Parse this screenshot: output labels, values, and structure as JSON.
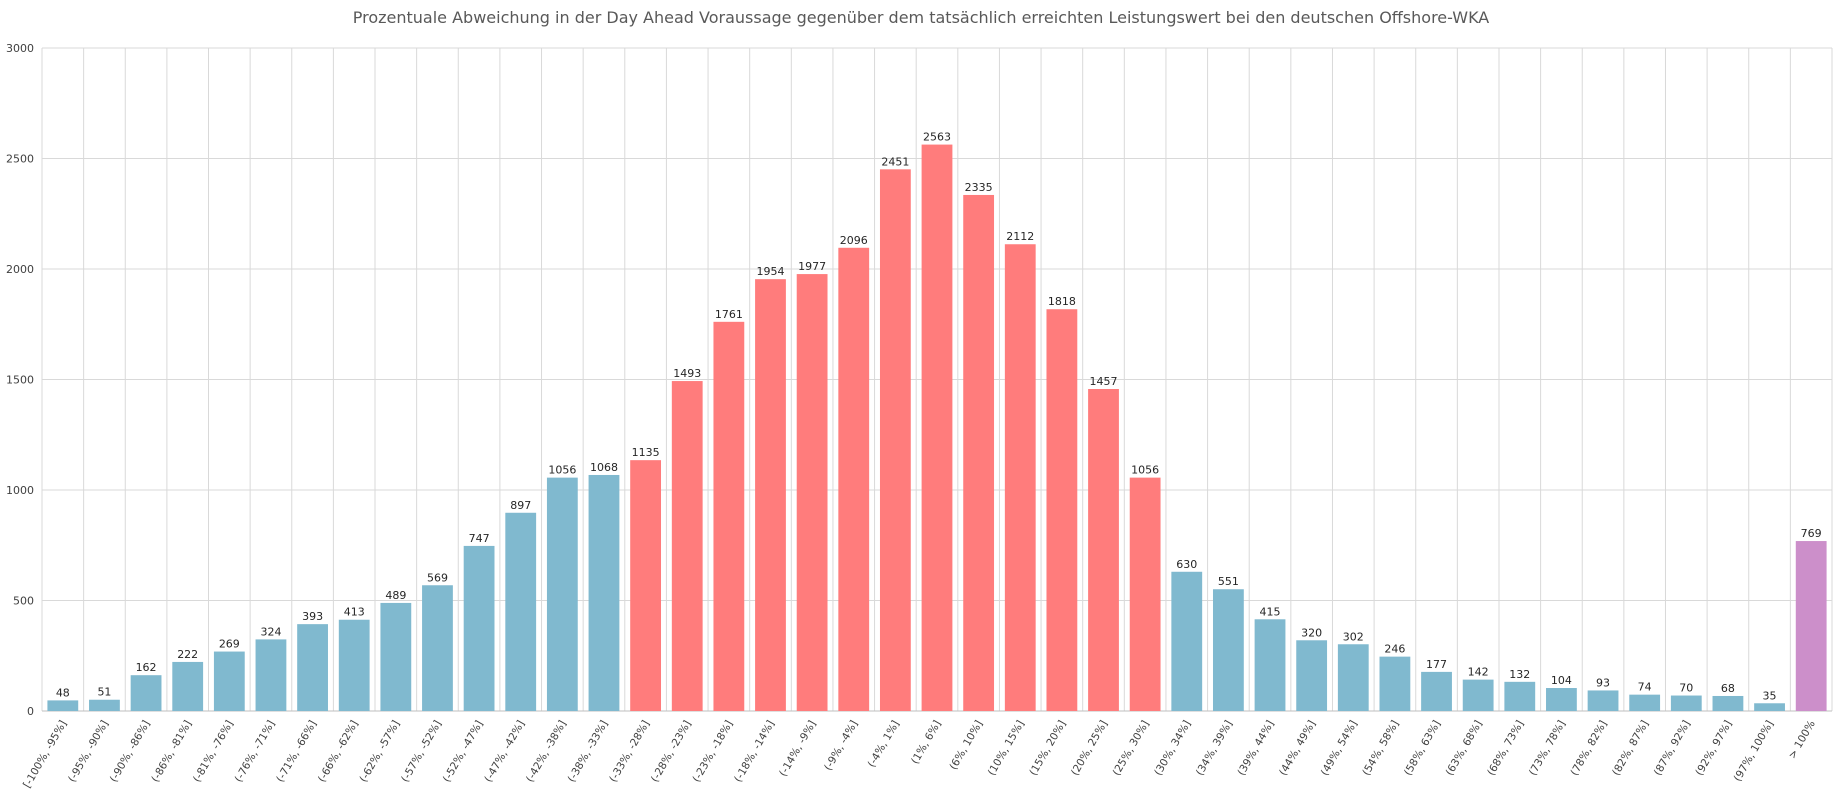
{
  "chart_data": {
    "type": "bar",
    "title": "Prozentuale Abweichung in der Day Ahead Voraussage gegenüber dem tatsächlich erreichten Leistungswert bei den deutschen Offshore-WKA",
    "xlabel": "",
    "ylabel": "",
    "ylim": [
      0,
      3000
    ],
    "yticks": [
      0,
      500,
      1000,
      1500,
      2000,
      2500,
      3000
    ],
    "grid": true,
    "categories": [
      "[-100%, -95%]",
      "(-95%, -90%]",
      "(-90%, -86%]",
      "(-86%, -81%]",
      "(-81%, -76%]",
      "(-76%, -71%]",
      "(-71%, -66%]",
      "(-66%, -62%]",
      "(-62%, -57%]",
      "(-57%, -52%]",
      "(-52%, -47%]",
      "(-47%, -42%]",
      "(-42%, -38%]",
      "(-38%, -33%]",
      "(-33%, -28%]",
      "(-28%, -23%]",
      "(-23%, -18%]",
      "(-18%, -14%]",
      "(-14%, -9%]",
      "(-9%, -4%]",
      "(-4%, 1%]",
      "(1%, 6%]",
      "(6%, 10%]",
      "(10%, 15%]",
      "(15%, 20%]",
      "(20%, 25%]",
      "(25%, 30%]",
      "(30%, 34%]",
      "(34%, 39%]",
      "(39%, 44%]",
      "(44%, 49%]",
      "(49%, 54%]",
      "(54%, 58%]",
      "(58%, 63%]",
      "(63%, 68%]",
      "(68%, 73%]",
      "(73%, 78%]",
      "(78%, 82%]",
      "(82%, 87%]",
      "(87%, 92%]",
      "(92%, 97%]",
      "(97%, 100%]",
      "> 100%"
    ],
    "values": [
      48,
      51,
      162,
      222,
      269,
      324,
      393,
      413,
      489,
      569,
      747,
      897,
      1056,
      1068,
      1135,
      1493,
      1761,
      1954,
      1977,
      2096,
      2451,
      2563,
      2335,
      2112,
      1818,
      1457,
      1056,
      630,
      551,
      415,
      320,
      302,
      246,
      177,
      142,
      132,
      104,
      93,
      74,
      70,
      68,
      35,
      769
    ],
    "bar_groups": [
      "blue",
      "blue",
      "blue",
      "blue",
      "blue",
      "blue",
      "blue",
      "blue",
      "blue",
      "blue",
      "blue",
      "blue",
      "blue",
      "blue",
      "red",
      "red",
      "red",
      "red",
      "red",
      "red",
      "red",
      "red",
      "red",
      "red",
      "red",
      "red",
      "red",
      "blue",
      "blue",
      "blue",
      "blue",
      "blue",
      "blue",
      "blue",
      "blue",
      "blue",
      "blue",
      "blue",
      "blue",
      "blue",
      "blue",
      "blue",
      "purple"
    ],
    "colors": {
      "blue": "#80b9cf",
      "red": "#ff7c7c",
      "purple": "#cc8fca",
      "grid": "#d9d9d9",
      "axis": "#bfbfbf"
    }
  }
}
